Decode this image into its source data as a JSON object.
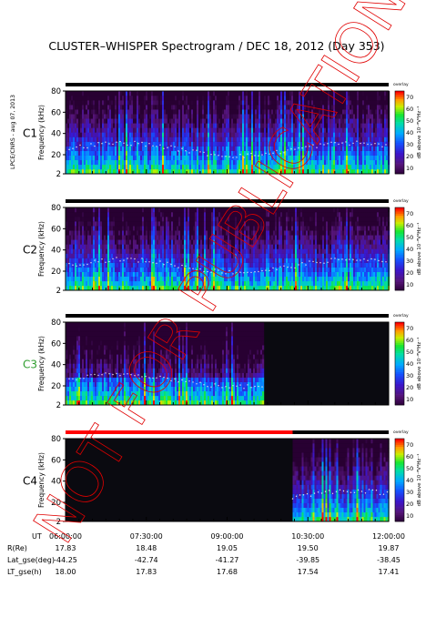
{
  "figure": {
    "title": "CLUSTER–WHISPER Spectrogram / DEC 18, 2012 (Day 353)",
    "side_label": "LPCE/CNRS - aug 07, 2013",
    "watermark": "NOT FOR PUBLICATION",
    "corner_label": "overlay"
  },
  "colors": {
    "background_dark": "#0a0a10",
    "header_bar": "#000000",
    "c4_header_bar": "#ff0000",
    "c3_label": "#2e9d2e",
    "watermark": "#e00000"
  },
  "chart_data": [
    {
      "type": "heatmap",
      "panel": "C1",
      "label": "C1",
      "ylabel": "Frequency (kHz)",
      "ylim": [
        2,
        80
      ],
      "yticks": [
        "2",
        "20",
        "40",
        "60",
        "80"
      ],
      "colorbar_label": "dB above 10⁻⁸V²Hz⁻¹",
      "colorbar_ticks": [
        "10",
        "20",
        "30",
        "40",
        "50",
        "60",
        "70"
      ],
      "data_coverage": {
        "from": "06:00:00",
        "to": "12:00:00"
      }
    },
    {
      "type": "heatmap",
      "panel": "C2",
      "label": "C2",
      "ylabel": "Frequency (kHz)",
      "ylim": [
        2,
        80
      ],
      "yticks": [
        "2",
        "20",
        "40",
        "60",
        "80"
      ],
      "colorbar_label": "dB above 10⁻⁸V²Hz⁻¹",
      "colorbar_ticks": [
        "10",
        "20",
        "30",
        "40",
        "50",
        "60",
        "70"
      ],
      "data_coverage": {
        "from": "06:00:00",
        "to": "12:00:00"
      }
    },
    {
      "type": "heatmap",
      "panel": "C3",
      "label": "C3",
      "ylabel": "Frequency (kHz)",
      "ylim": [
        2,
        80
      ],
      "yticks": [
        "2",
        "20",
        "40",
        "60",
        "80"
      ],
      "colorbar_label": "dB above 10⁻⁸V²Hz⁻¹",
      "colorbar_ticks": [
        "10",
        "20",
        "30",
        "40",
        "50",
        "60",
        "70"
      ],
      "data_coverage": {
        "from": "06:00:00",
        "to": "09:40:00"
      }
    },
    {
      "type": "heatmap",
      "panel": "C4",
      "label": "C4",
      "ylabel": "Frequency (kHz)",
      "ylim": [
        2,
        80
      ],
      "yticks": [
        "2",
        "20",
        "40",
        "60",
        "80"
      ],
      "colorbar_label": "dB above 10⁻⁸V²Hz⁻¹",
      "colorbar_ticks": [
        "10",
        "20",
        "30",
        "40",
        "50",
        "60",
        "70"
      ],
      "data_coverage": {
        "from": "10:13:00",
        "to": "12:00:00"
      }
    }
  ],
  "time_axis": {
    "ticks": [
      "06:00:00",
      "07:30:00",
      "09:00:00",
      "10:30:00",
      "12:00:00"
    ]
  },
  "ephemeris": [
    {
      "label": "UT",
      "values": [
        "06:00:00",
        "07:30:00",
        "09:00:00",
        "10:30:00",
        "12:00:00"
      ]
    },
    {
      "label": "R(Re)",
      "values": [
        "17.83",
        "18.48",
        "19.05",
        "19.50",
        "19.87"
      ]
    },
    {
      "label": "Lat_gse(deg)",
      "values": [
        "-44.25",
        "-42.74",
        "-41.27",
        "-39.85",
        "-38.45"
      ]
    },
    {
      "label": "LT_gse(h)",
      "values": [
        "18.00",
        "17.83",
        "17.68",
        "17.54",
        "17.41"
      ]
    }
  ]
}
